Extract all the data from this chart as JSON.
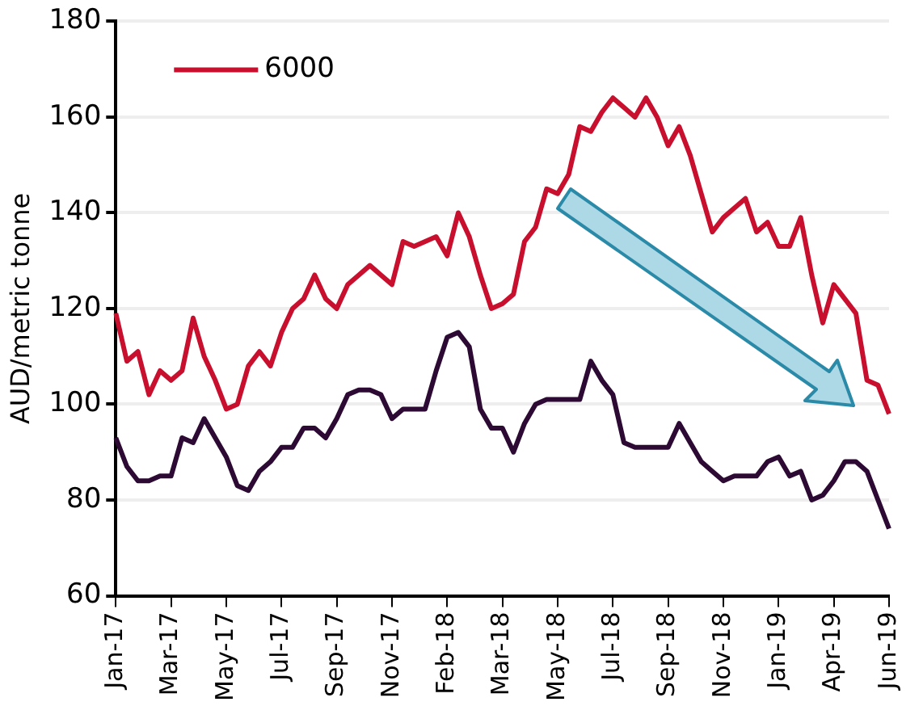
{
  "chart_data": {
    "type": "line",
    "ylabel": "AUD/metric tonne",
    "categories": [
      "Jan-17",
      null,
      null,
      null,
      null,
      "Mar-17",
      null,
      null,
      null,
      null,
      "May-17",
      null,
      null,
      null,
      null,
      "Jul-17",
      null,
      null,
      null,
      null,
      "Sep-17",
      null,
      null,
      null,
      null,
      "Nov-17",
      null,
      null,
      null,
      null,
      "Feb-18",
      null,
      null,
      null,
      null,
      "Mar-18",
      null,
      null,
      null,
      null,
      "May-18",
      null,
      null,
      null,
      null,
      "Jul-18",
      null,
      null,
      null,
      null,
      "Sep-18",
      null,
      null,
      null,
      null,
      "Nov-18",
      null,
      null,
      null,
      null,
      "Jan-19",
      null,
      null,
      null,
      null,
      "Apr-19",
      null,
      null,
      null,
      null,
      "Jun-19"
    ],
    "series": [
      {
        "name": "6000",
        "color": "#c8102e",
        "values": [
          119,
          109,
          111,
          102,
          107,
          105,
          107,
          118,
          110,
          105,
          99,
          100,
          108,
          111,
          108,
          115,
          120,
          122,
          127,
          122,
          120,
          125,
          127,
          129,
          127,
          125,
          134,
          133,
          134,
          135,
          131,
          140,
          135,
          127,
          120,
          121,
          123,
          134,
          137,
          145,
          144,
          148,
          158,
          157,
          161,
          164,
          162,
          160,
          164,
          160,
          154,
          158,
          152,
          144,
          136,
          139,
          141,
          143,
          136,
          138,
          133,
          133,
          139,
          127,
          117,
          125,
          122,
          119,
          105,
          104,
          98
        ]
      },
      {
        "color": "#2d0a33",
        "values": [
          93,
          87,
          84,
          84,
          85,
          85,
          93,
          92,
          97,
          93,
          89,
          83,
          82,
          86,
          88,
          91,
          91,
          95,
          95,
          93,
          97,
          102,
          103,
          103,
          102,
          97,
          99,
          99,
          99,
          107,
          114,
          115,
          112,
          99,
          95,
          95,
          90,
          96,
          100,
          101,
          101,
          101,
          101,
          109,
          105,
          102,
          92,
          91,
          91,
          91,
          91,
          96,
          92,
          88,
          86,
          84,
          85,
          85,
          85,
          88,
          89,
          85,
          86,
          80,
          81,
          84,
          88,
          88,
          86,
          80,
          74
        ]
      }
    ],
    "ylim": [
      60,
      180
    ],
    "yticks": [
      60,
      80,
      100,
      120,
      140,
      160,
      180
    ],
    "grid": "y",
    "legend": "top left",
    "marker": "none",
    "line_style": "solid"
  }
}
